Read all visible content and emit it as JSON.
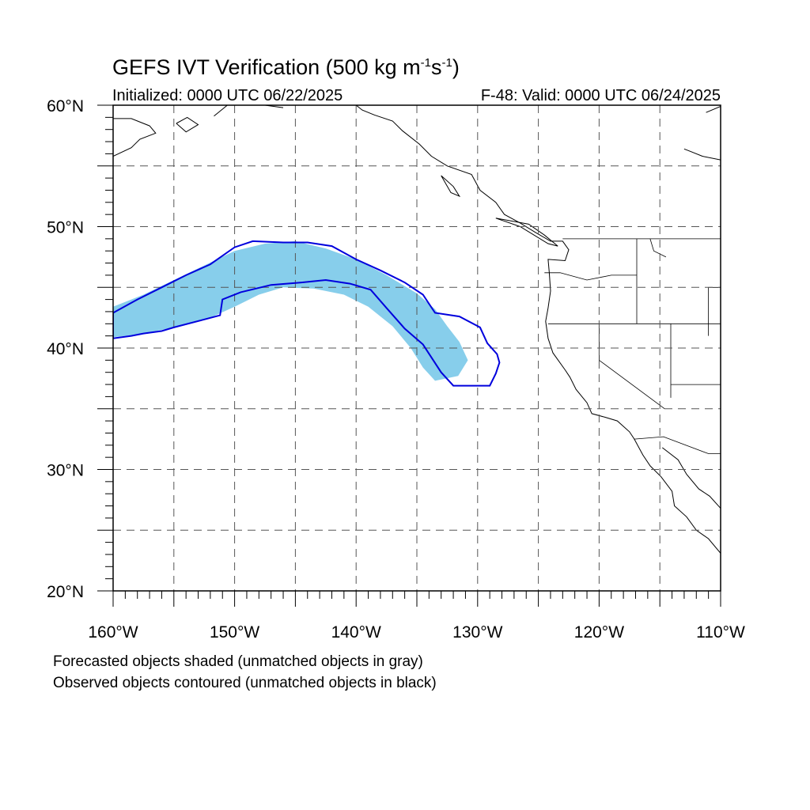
{
  "title": {
    "text": "GEFS IVT Verification (500 kg m",
    "exp1": "-1",
    "mid": "s",
    "exp2": "-1",
    "end": ")"
  },
  "subtitle_left": "Initialized: 0000 UTC 06/22/2025",
  "subtitle_right": "F-48: Valid: 0000 UTC 06/24/2025",
  "captions": [
    "Forecasted objects shaded (unmatched objects in gray)",
    "Observed objects contoured (unmatched objects in black)"
  ],
  "map": {
    "lon_range": [
      -160,
      -110
    ],
    "lat_range": [
      20,
      60
    ],
    "lon_ticks": [
      {
        "value": -160,
        "label": "160°W"
      },
      {
        "value": -150,
        "label": "150°W"
      },
      {
        "value": -140,
        "label": "140°W"
      },
      {
        "value": -130,
        "label": "130°W"
      },
      {
        "value": -120,
        "label": "120°W"
      },
      {
        "value": -110,
        "label": "110°W"
      }
    ],
    "lat_ticks": [
      {
        "value": 60,
        "label": "60°N"
      },
      {
        "value": 50,
        "label": "50°N"
      },
      {
        "value": 40,
        "label": "40°N"
      },
      {
        "value": 30,
        "label": "30°N"
      },
      {
        "value": 20,
        "label": "20°N"
      }
    ],
    "grid_lon_step": 5,
    "grid_lat_step": 5,
    "colors": {
      "forecast_fill": "#87ceeb",
      "observed_contour": "#0000dd",
      "grid": "#555555",
      "coast": "#000000"
    },
    "forecast_object": [
      [
        -160,
        43.4
      ],
      [
        -157.5,
        44.4
      ],
      [
        -155,
        45.6
      ],
      [
        -152.5,
        46.8
      ],
      [
        -150,
        48.0
      ],
      [
        -147.5,
        48.6
      ],
      [
        -145,
        48.8
      ],
      [
        -142.5,
        48.2
      ],
      [
        -140,
        47.3
      ],
      [
        -137.5,
        46.0
      ],
      [
        -135,
        44.5
      ],
      [
        -133.5,
        43.2
      ],
      [
        -132.5,
        41.8
      ],
      [
        -131.5,
        40.5
      ],
      [
        -130.8,
        39.0
      ],
      [
        -131.6,
        37.7
      ],
      [
        -133.5,
        37.3
      ],
      [
        -134.5,
        38.4
      ],
      [
        -135.5,
        40.0
      ],
      [
        -137,
        41.8
      ],
      [
        -139,
        43.4
      ],
      [
        -141,
        44.4
      ],
      [
        -143.5,
        44.9
      ],
      [
        -146,
        45.0
      ],
      [
        -148,
        44.4
      ],
      [
        -150,
        43.4
      ],
      [
        -152,
        42.5
      ],
      [
        -154,
        41.9
      ],
      [
        -156,
        41.5
      ],
      [
        -158,
        41.1
      ],
      [
        -160,
        40.9
      ]
    ],
    "observed_object": [
      [
        -160,
        42.9
      ],
      [
        -158,
        44.0
      ],
      [
        -156,
        45.0
      ],
      [
        -154,
        46.0
      ],
      [
        -152,
        46.9
      ],
      [
        -150,
        48.3
      ],
      [
        -148.5,
        48.8
      ],
      [
        -146,
        48.7
      ],
      [
        -144,
        48.7
      ],
      [
        -142,
        48.4
      ],
      [
        -140,
        47.3
      ],
      [
        -138,
        46.4
      ],
      [
        -136,
        45.4
      ],
      [
        -134.5,
        44.4
      ],
      [
        -133.5,
        42.9
      ],
      [
        -131.5,
        42.6
      ],
      [
        -129.8,
        41.7
      ],
      [
        -129.2,
        40.4
      ],
      [
        -128.4,
        39.5
      ],
      [
        -128.2,
        38.8
      ],
      [
        -128.5,
        37.9
      ],
      [
        -129.0,
        36.9
      ],
      [
        -130.5,
        36.9
      ],
      [
        -132,
        36.9
      ],
      [
        -133,
        38.0
      ],
      [
        -134.5,
        40.3
      ],
      [
        -136,
        41.6
      ],
      [
        -137.5,
        43.3
      ],
      [
        -138.8,
        44.8
      ],
      [
        -140.5,
        45.3
      ],
      [
        -142.5,
        45.6
      ],
      [
        -144.5,
        45.4
      ],
      [
        -147,
        45.2
      ],
      [
        -149.5,
        44.6
      ],
      [
        -151,
        44.0
      ],
      [
        -151.2,
        42.7
      ],
      [
        -152.7,
        42.3
      ],
      [
        -155,
        41.7
      ],
      [
        -156,
        41.4
      ],
      [
        -157.5,
        41.2
      ],
      [
        -158.5,
        41.0
      ],
      [
        -160,
        40.8
      ]
    ],
    "coastlines": [
      [
        [
          -160,
          58.9
        ],
        [
          -158.5,
          58.9
        ],
        [
          -157,
          58.3
        ],
        [
          -156.5,
          57.7
        ],
        [
          -157.8,
          57.2
        ],
        [
          -158.5,
          56.5
        ],
        [
          -160,
          55.8
        ]
      ],
      [
        [
          -154.8,
          58.5
        ],
        [
          -153.9,
          59.0
        ],
        [
          -153,
          58.4
        ],
        [
          -154,
          57.8
        ],
        [
          -154.8,
          58.5
        ]
      ],
      [
        [
          -151.7,
          59.1
        ],
        [
          -150.6,
          60.0
        ],
        [
          -147.5,
          60.0
        ],
        [
          -146,
          59.8
        ]
      ],
      [
        [
          -140,
          60.0
        ],
        [
          -139.5,
          59.6
        ],
        [
          -138.5,
          59.2
        ],
        [
          -137,
          58.7
        ],
        [
          -136.2,
          57.9
        ],
        [
          -134.8,
          56.8
        ],
        [
          -133.8,
          55.8
        ],
        [
          -132.5,
          55.0
        ],
        [
          -130.5,
          54.3
        ],
        [
          -129.8,
          53.0
        ],
        [
          -128.5,
          52.0
        ],
        [
          -127.8,
          51.0
        ],
        [
          -126.5,
          50.3
        ],
        [
          -125.2,
          49.5
        ],
        [
          -124,
          48.8
        ],
        [
          -123.0,
          48.8
        ],
        [
          -122.5,
          48.1
        ],
        [
          -122.8,
          47.2
        ],
        [
          -124.2,
          47.3
        ],
        [
          -124.1,
          46.2
        ],
        [
          -124.0,
          44.7
        ],
        [
          -124.2,
          43.3
        ],
        [
          -124.4,
          42.2
        ],
        [
          -124.2,
          40.8
        ],
        [
          -123.8,
          39.6
        ],
        [
          -122.8,
          38.2
        ],
        [
          -122.4,
          37.6
        ],
        [
          -121.9,
          36.6
        ],
        [
          -121.0,
          35.5
        ],
        [
          -120.6,
          34.6
        ],
        [
          -119.5,
          34.3
        ],
        [
          -118.5,
          34.0
        ],
        [
          -117.5,
          33.1
        ],
        [
          -117.1,
          32.5
        ],
        [
          -116.4,
          31.2
        ],
        [
          -115.8,
          30.3
        ],
        [
          -114.9,
          29.4
        ],
        [
          -114.0,
          28.2
        ],
        [
          -113.8,
          27.0
        ],
        [
          -112.8,
          26.1
        ],
        [
          -112.0,
          25.0
        ],
        [
          -111.0,
          24.3
        ],
        [
          -110,
          23.1
        ]
      ],
      [
        [
          -128.5,
          50.7
        ],
        [
          -126.5,
          50.0
        ],
        [
          -124.2,
          48.6
        ],
        [
          -123.4,
          48.4
        ],
        [
          -124.5,
          49.3
        ],
        [
          -125.8,
          50.2
        ],
        [
          -128.5,
          50.7
        ]
      ],
      [
        [
          -133.0,
          54.2
        ],
        [
          -132.0,
          53.3
        ],
        [
          -131.5,
          52.5
        ],
        [
          -132.2,
          52.8
        ],
        [
          -133.0,
          54.2
        ]
      ],
      [
        [
          -114.8,
          31.8
        ],
        [
          -113.5,
          30.8
        ],
        [
          -112.8,
          29.6
        ],
        [
          -111.8,
          28.4
        ],
        [
          -110.9,
          27.8
        ],
        [
          -110,
          26.8
        ]
      ],
      [
        [
          -110,
          55.5
        ],
        [
          -111.5,
          55.8
        ],
        [
          -112.5,
          56.2
        ],
        [
          -113.0,
          56.4
        ]
      ],
      [
        [
          -110,
          59.9
        ],
        [
          -111.2,
          59.4
        ]
      ]
    ],
    "borders": [
      [
        [
          -123.0,
          49.0
        ],
        [
          -110,
          49.0
        ]
      ],
      [
        [
          -124.5,
          46.2
        ],
        [
          -123.2,
          46.2
        ],
        [
          -121.0,
          45.6
        ],
        [
          -119,
          46.0
        ],
        [
          -116.9,
          46.0
        ]
      ],
      [
        [
          -116.9,
          49.0
        ],
        [
          -116.9,
          42.0
        ]
      ],
      [
        [
          -124.2,
          42.0
        ],
        [
          -110,
          42.0
        ]
      ],
      [
        [
          -120.0,
          42.0
        ],
        [
          -120.0,
          39.0
        ],
        [
          -114.6,
          35.0
        ]
      ],
      [
        [
          -114.1,
          42.0
        ],
        [
          -114.1,
          35.9
        ]
      ],
      [
        [
          -117.1,
          32.5
        ],
        [
          -114.7,
          32.7
        ],
        [
          -111.0,
          31.3
        ],
        [
          -110,
          31.3
        ]
      ],
      [
        [
          -111.0,
          45.0
        ],
        [
          -110,
          45.0
        ]
      ],
      [
        [
          -111.0,
          45.0
        ],
        [
          -111.0,
          41.0
        ]
      ],
      [
        [
          -114.1,
          37.0
        ],
        [
          -110,
          37.0
        ]
      ],
      [
        [
          -115.8,
          49.0
        ],
        [
          -115.5,
          48.0
        ],
        [
          -114.5,
          47.5
        ]
      ]
    ]
  }
}
